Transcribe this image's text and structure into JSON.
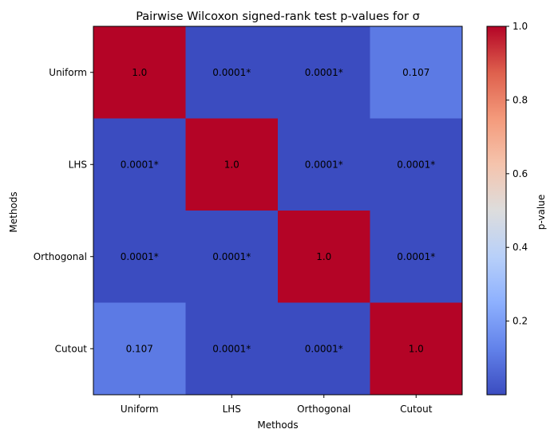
{
  "chart_data": {
    "type": "heatmap",
    "title": "Pairwise Wilcoxon signed-rank test p-values for σ",
    "xlabel": "Methods",
    "ylabel": "Methods",
    "x_categories": [
      "Uniform",
      "LHS",
      "Orthogonal",
      "Cutout"
    ],
    "y_categories": [
      "Uniform",
      "LHS",
      "Orthogonal",
      "Cutout"
    ],
    "values": [
      [
        1.0,
        0.0001,
        0.0001,
        0.107
      ],
      [
        0.0001,
        1.0,
        0.0001,
        0.0001
      ],
      [
        0.0001,
        0.0001,
        1.0,
        0.0001
      ],
      [
        0.107,
        0.0001,
        0.0001,
        1.0
      ]
    ],
    "cell_labels": [
      [
        "1.0",
        "0.0001*",
        "0.0001*",
        "0.107"
      ],
      [
        "0.0001*",
        "1.0",
        "0.0001*",
        "0.0001*"
      ],
      [
        "0.0001*",
        "0.0001*",
        "1.0",
        "0.0001*"
      ],
      [
        "0.107",
        "0.0001*",
        "0.0001*",
        "1.0"
      ]
    ],
    "colormap": "coolwarm",
    "vmin": 0.0001,
    "vmax": 1.0,
    "colorbar": {
      "label": "p-value",
      "ticks": [
        0.2,
        0.4,
        0.6,
        0.8,
        1.0
      ],
      "tick_labels": [
        "0.2",
        "0.4",
        "0.6",
        "0.8",
        "1.0"
      ]
    },
    "legend": "colorbar-right"
  }
}
